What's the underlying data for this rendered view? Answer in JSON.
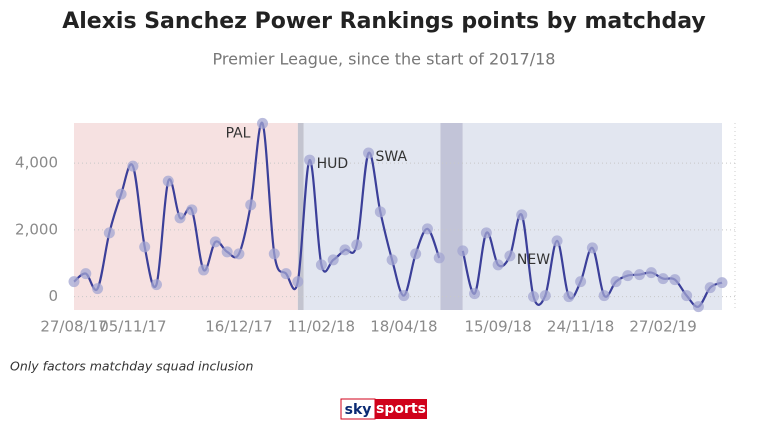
{
  "chart_data": {
    "type": "line",
    "title": "Alexis Sanchez Power Rankings points by matchday",
    "subtitle": "Premier League, since the start of 2017/18",
    "footnote": "Only factors matchday squad inclusion",
    "logo": [
      "sky",
      "sports"
    ],
    "x": [
      0,
      1,
      2,
      3,
      4,
      5,
      6,
      7,
      8,
      9,
      10,
      11,
      12,
      13,
      14,
      15,
      16,
      17,
      18,
      19,
      20,
      21,
      22,
      23,
      24,
      25,
      26,
      27,
      28,
      29,
      30,
      31,
      32,
      33,
      34,
      35,
      36,
      37,
      38,
      39,
      40,
      41,
      42,
      43,
      44,
      45,
      46,
      47,
      48,
      49,
      50,
      51,
      52,
      53,
      54,
      55
    ],
    "series": [
      {
        "name": "Power Rankings points",
        "color": "#3b3f99",
        "point_color": "#a3a6d1",
        "values": [
          450,
          690,
          240,
          1910,
          3070,
          3910,
          1490,
          360,
          3460,
          2360,
          2600,
          800,
          1640,
          1340,
          1280,
          2750,
          5190,
          1280,
          690,
          450,
          4090,
          950,
          1100,
          1400,
          1550,
          4300,
          2540,
          1100,
          30,
          1280,
          2030,
          1160,
          null,
          1370,
          90,
          1910,
          950,
          1220,
          2450,
          0,
          30,
          1670,
          0,
          450,
          1460,
          30,
          450,
          630,
          660,
          720,
          540,
          510,
          30,
          -300,
          270,
          420
        ]
      }
    ],
    "annotations": [
      {
        "text": "PAL",
        "x": 16
      },
      {
        "text": "HUD",
        "x": 20
      },
      {
        "text": "SWA",
        "x": 25
      },
      {
        "text": "NEW",
        "x": 37
      }
    ],
    "bands": [
      {
        "from": 0,
        "to": 19,
        "color": "#f6e1e1"
      },
      {
        "from": 19,
        "to": 19.5,
        "color": "#c3c4cf"
      },
      {
        "from": 19.5,
        "to": 31.1,
        "color": "#e2e6f0"
      },
      {
        "from": 31.1,
        "to": 33,
        "color": "#c2c4d8"
      },
      {
        "from": 33,
        "to": 55,
        "color": "#e2e6f0"
      }
    ],
    "xlim": [
      0,
      55
    ],
    "xticks": [
      {
        "value": 0,
        "label": "27/08/17"
      },
      {
        "value": 5,
        "label": "05/11/17"
      },
      {
        "value": 14,
        "label": "16/12/17"
      },
      {
        "value": 21,
        "label": "11/02/18"
      },
      {
        "value": 28,
        "label": "18/04/18"
      },
      {
        "value": 36,
        "label": "15/09/18"
      },
      {
        "value": 43,
        "label": "24/11/18"
      },
      {
        "value": 50,
        "label": "27/02/19"
      }
    ],
    "ylim": [
      -400,
      5200
    ],
    "yticks": [
      0,
      {
        "value": 2000,
        "label": "2,000"
      },
      {
        "value": 4000,
        "label": "4,000"
      }
    ],
    "grid": true
  }
}
